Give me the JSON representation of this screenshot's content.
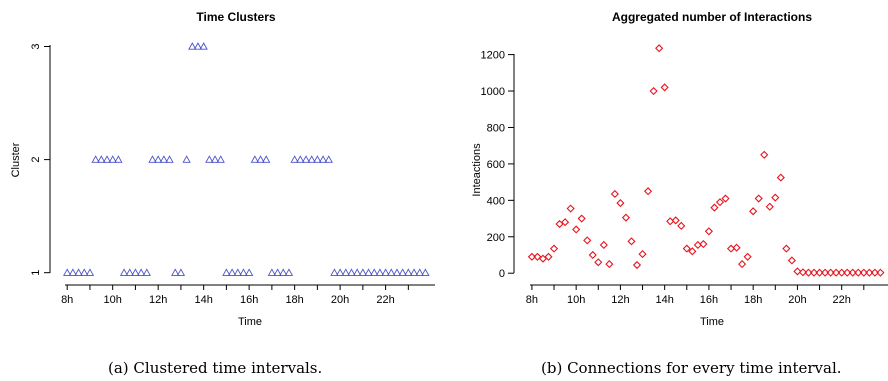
{
  "captions": {
    "a": "(a) Clustered time intervals.",
    "b": "(b) Connections for every time interval."
  },
  "chart_data": [
    {
      "type": "scatter",
      "title": "Time Clusters",
      "xlabel": "Time",
      "ylabel": "Cluster",
      "marker": "triangle",
      "color": "#4a52c8",
      "xlim": [
        7.5,
        24
      ],
      "ylim": [
        1,
        3
      ],
      "x_ticks": [
        8,
        10,
        12,
        14,
        16,
        18,
        20,
        22
      ],
      "x_tick_labels": [
        "8h",
        "10h",
        "12h",
        "14h",
        "16h",
        "18h",
        "20h",
        "22h"
      ],
      "y_ticks": [
        1,
        2,
        3
      ],
      "y_tick_labels": [
        "1",
        "2",
        "3"
      ],
      "x": [
        8,
        8.25,
        8.5,
        8.75,
        9,
        9.25,
        9.5,
        9.75,
        10,
        10.25,
        10.5,
        10.75,
        11,
        11.25,
        11.5,
        11.75,
        12,
        12.25,
        12.5,
        12.75,
        13,
        13.25,
        13.5,
        13.75,
        14,
        14.25,
        14.5,
        14.75,
        15,
        15.25,
        15.5,
        15.75,
        16,
        16.25,
        16.5,
        16.75,
        17,
        17.25,
        17.5,
        17.75,
        18,
        18.25,
        18.5,
        18.75,
        19,
        19.25,
        19.5,
        19.75,
        20,
        20.25,
        20.5,
        20.75,
        21,
        21.25,
        21.5,
        21.75,
        22,
        22.25,
        22.5,
        22.75,
        23,
        23.25,
        23.5,
        23.75
      ],
      "y": [
        1,
        1,
        1,
        1,
        1,
        2,
        2,
        2,
        2,
        2,
        1,
        1,
        1,
        1,
        1,
        2,
        2,
        2,
        2,
        1,
        1,
        2,
        3,
        3,
        3,
        2,
        2,
        2,
        1,
        1,
        1,
        1,
        1,
        2,
        2,
        2,
        1,
        1,
        1,
        1,
        2,
        2,
        2,
        2,
        2,
        2,
        2,
        1,
        1,
        1,
        1,
        1,
        1,
        1,
        1,
        1,
        1,
        1,
        1,
        1,
        1,
        1,
        1,
        1
      ]
    },
    {
      "type": "scatter",
      "title": "Aggregated number of Interactions",
      "xlabel": "Time",
      "ylabel": "Inteactions",
      "marker": "diamond",
      "color": "#e8141e",
      "xlim": [
        7.5,
        24
      ],
      "ylim": [
        0,
        1200
      ],
      "x_ticks": [
        8,
        10,
        12,
        14,
        16,
        18,
        20,
        22
      ],
      "x_tick_labels": [
        "8h",
        "10h",
        "12h",
        "14h",
        "16h",
        "18h",
        "20h",
        "22h"
      ],
      "y_ticks": [
        0,
        200,
        400,
        600,
        800,
        1000,
        1200
      ],
      "y_tick_labels": [
        "0",
        "200",
        "400",
        "600",
        "800",
        "1000",
        "1200"
      ],
      "x": [
        8,
        8.25,
        8.5,
        8.75,
        9,
        9.25,
        9.5,
        9.75,
        10,
        10.25,
        10.5,
        10.75,
        11,
        11.25,
        11.5,
        11.75,
        12,
        12.25,
        12.5,
        12.75,
        13,
        13.25,
        13.5,
        13.75,
        14,
        14.25,
        14.5,
        14.75,
        15,
        15.25,
        15.5,
        15.75,
        16,
        16.25,
        16.5,
        16.75,
        17,
        17.25,
        17.5,
        17.75,
        18,
        18.25,
        18.5,
        18.75,
        19,
        19.25,
        19.5,
        19.75,
        20,
        20.25,
        20.5,
        20.75,
        21,
        21.25,
        21.5,
        21.75,
        22,
        22.25,
        22.5,
        22.75,
        23,
        23.25,
        23.5,
        23.75
      ],
      "y": [
        90,
        90,
        80,
        90,
        135,
        270,
        280,
        355,
        240,
        300,
        180,
        100,
        60,
        155,
        50,
        435,
        385,
        305,
        175,
        45,
        105,
        450,
        1000,
        1235,
        1020,
        285,
        290,
        260,
        135,
        120,
        155,
        160,
        230,
        360,
        390,
        410,
        135,
        140,
        50,
        90,
        340,
        410,
        650,
        365,
        415,
        525,
        135,
        70,
        10,
        5,
        3,
        3,
        3,
        3,
        3,
        3,
        3,
        3,
        3,
        3,
        3,
        3,
        3,
        3
      ]
    }
  ]
}
